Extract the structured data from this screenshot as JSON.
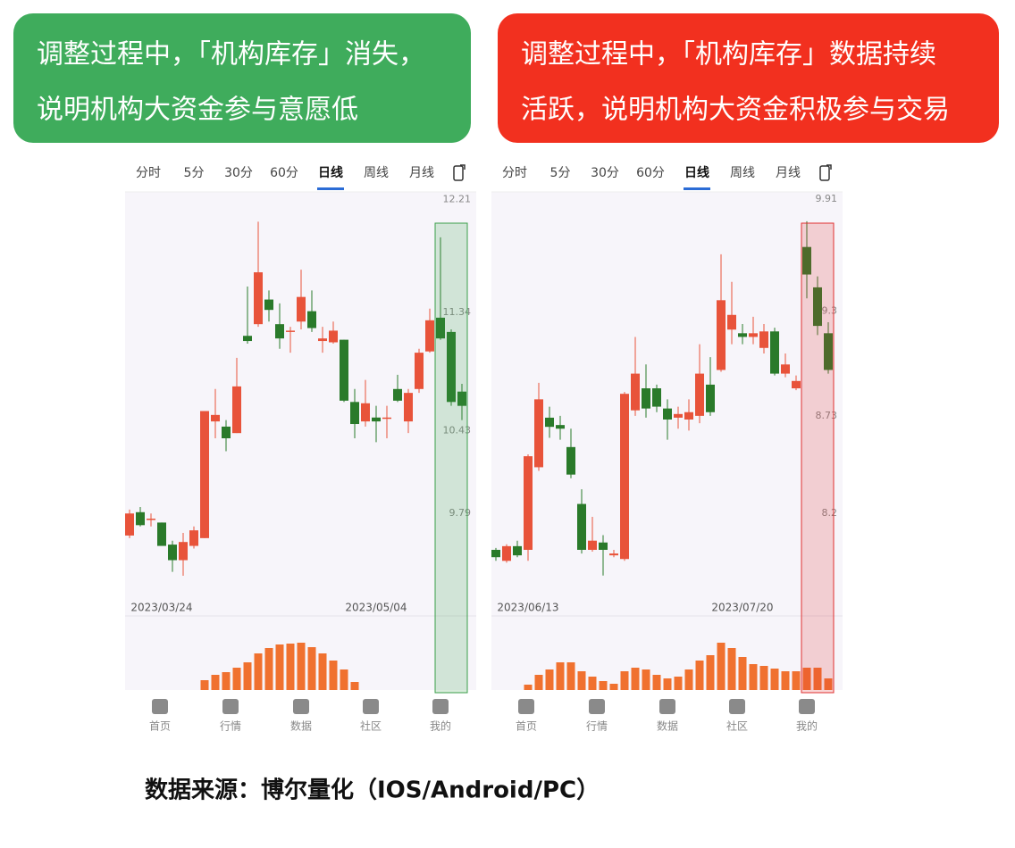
{
  "banners": [
    {
      "lines": [
        "调整过程中，「机构库存」消失，",
        "说明机构大资金参与意愿低"
      ],
      "color": "#3fac5c"
    },
    {
      "lines": [
        "调整过程中，「机构库存」数据持续",
        "活跃，说明机构大资金积极参与交易"
      ],
      "color": "#f2301f"
    }
  ],
  "tabs": [
    "分时",
    "5分",
    "30分",
    "60分",
    "日线",
    "周线",
    "月线"
  ],
  "nav": [
    "首页",
    "行情",
    "数据",
    "社区",
    "我的"
  ],
  "source": "数据来源：博尔量化（IOS/Android/PC）",
  "chart_data": [
    {
      "type": "candlestick",
      "up_color": "#e8533a",
      "down_color": "#2a7a2a",
      "volume_color": "#f0712f",
      "categories": [
        null,
        null,
        null,
        "2023/03/24",
        null,
        null,
        null,
        null,
        null,
        null,
        null,
        null,
        null,
        null,
        null,
        null,
        null,
        null,
        null,
        null,
        null,
        null,
        null,
        "2023/05/04",
        null,
        null,
        null,
        null,
        null,
        null,
        null,
        null
      ],
      "open": [
        9.62,
        9.8,
        9.74,
        9.72,
        9.55,
        9.43,
        9.54,
        9.6,
        10.5,
        10.46,
        10.41,
        11.16,
        11.25,
        11.44,
        11.25,
        11.19,
        11.27,
        11.35,
        11.12,
        11.11,
        11.13,
        10.65,
        10.5,
        10.53,
        10.52,
        10.75,
        10.5,
        10.75,
        11.04,
        11.3,
        11.19,
        10.73
      ],
      "high": [
        9.82,
        9.84,
        9.79,
        9.72,
        9.58,
        9.64,
        9.69,
        10.58,
        10.75,
        10.51,
        10.99,
        11.54,
        12.04,
        11.51,
        11.41,
        11.23,
        11.67,
        11.51,
        11.23,
        11.27,
        11.13,
        10.75,
        10.82,
        10.62,
        10.62,
        10.86,
        10.75,
        11.06,
        11.37,
        11.92,
        11.21,
        10.79
      ],
      "low": [
        9.6,
        9.69,
        9.69,
        9.54,
        9.34,
        9.31,
        9.52,
        9.6,
        10.37,
        10.27,
        10.41,
        11.1,
        11.23,
        11.27,
        11.06,
        11.03,
        11.21,
        11.19,
        11.03,
        11.1,
        10.65,
        10.37,
        10.46,
        10.34,
        10.37,
        10.65,
        10.41,
        10.72,
        11.03,
        11.13,
        10.62,
        10.51
      ],
      "close": [
        9.79,
        9.7,
        9.75,
        9.54,
        9.43,
        9.57,
        9.66,
        10.58,
        10.55,
        10.37,
        10.77,
        11.12,
        11.65,
        11.36,
        11.14,
        11.2,
        11.46,
        11.22,
        11.14,
        11.2,
        10.66,
        10.48,
        10.64,
        10.5,
        10.53,
        10.66,
        10.72,
        11.03,
        11.28,
        11.14,
        10.65,
        10.62
      ],
      "volume": [
        null,
        null,
        null,
        null,
        null,
        null,
        null,
        11,
        17,
        20,
        25,
        31,
        41,
        47,
        51,
        52,
        53,
        48,
        41,
        33,
        23,
        9,
        null,
        null,
        null,
        null,
        null,
        null,
        null,
        null,
        null,
        null
      ],
      "ylim": [
        9.0,
        12.27
      ],
      "yticks": [
        12.21,
        11.34,
        10.43,
        9.79
      ],
      "volume_ylim": [
        0,
        60
      ],
      "highlight": {
        "start": 29,
        "end": 31,
        "color": "#3a9e4a"
      }
    },
    {
      "type": "candlestick",
      "up_color": "#e8533a",
      "down_color": "#2a7a2a",
      "volume_color": "#f0712f",
      "categories": [
        null,
        null,
        null,
        "2023/06/13",
        null,
        null,
        null,
        null,
        null,
        null,
        null,
        null,
        null,
        null,
        null,
        null,
        null,
        null,
        null,
        null,
        null,
        null,
        null,
        "2023/07/20",
        null,
        null,
        null,
        null,
        null,
        null,
        null,
        null
      ],
      "open": [
        8.0,
        7.94,
        8.02,
        8.0,
        8.45,
        8.72,
        8.68,
        8.56,
        8.25,
        8.0,
        8.04,
        7.97,
        7.95,
        8.76,
        8.88,
        8.88,
        8.77,
        8.72,
        8.71,
        8.73,
        8.9,
        8.98,
        9.2,
        9.18,
        9.16,
        9.1,
        9.19,
        8.96,
        8.88,
        9.65,
        9.43,
        9.18
      ],
      "high": [
        8.01,
        8.03,
        8.05,
        8.52,
        8.91,
        8.78,
        8.73,
        8.66,
        8.33,
        8.18,
        8.08,
        8.0,
        8.86,
        9.16,
        9.01,
        8.9,
        8.82,
        8.78,
        8.82,
        9.12,
        9.05,
        9.61,
        9.46,
        9.23,
        9.27,
        9.23,
        9.21,
        9.07,
        8.95,
        9.79,
        9.49,
        9.24
      ],
      "low": [
        7.94,
        7.93,
        7.96,
        7.94,
        8.43,
        8.61,
        8.6,
        8.39,
        7.98,
        7.99,
        7.86,
        7.96,
        7.94,
        8.73,
        8.72,
        8.75,
        8.6,
        8.66,
        8.65,
        8.69,
        8.73,
        8.97,
        9.12,
        9.12,
        9.12,
        9.07,
        8.95,
        8.94,
        8.87,
        9.37,
        9.17,
        8.96
      ],
      "close": [
        7.96,
        8.02,
        7.97,
        8.51,
        8.82,
        8.67,
        8.66,
        8.41,
        8.0,
        8.05,
        8.0,
        7.98,
        8.85,
        8.96,
        8.77,
        8.78,
        8.71,
        8.74,
        8.75,
        8.96,
        8.75,
        9.36,
        9.28,
        9.16,
        9.18,
        9.19,
        8.96,
        9.01,
        8.92,
        9.5,
        9.22,
        8.98
      ],
      "volume": [
        null,
        null,
        null,
        6,
        17,
        23,
        31,
        31,
        21,
        15,
        10,
        7,
        21,
        25,
        23,
        17,
        13,
        15,
        23,
        33,
        39,
        53,
        47,
        37,
        29,
        27,
        24,
        21,
        21,
        25,
        25,
        13
      ],
      "ylim": [
        7.64,
        9.95
      ],
      "yticks": [
        9.91,
        9.3,
        8.73,
        8.2
      ],
      "volume_ylim": [
        0,
        60
      ],
      "highlight": {
        "start": 29,
        "end": 31,
        "color": "#e03030"
      }
    }
  ]
}
